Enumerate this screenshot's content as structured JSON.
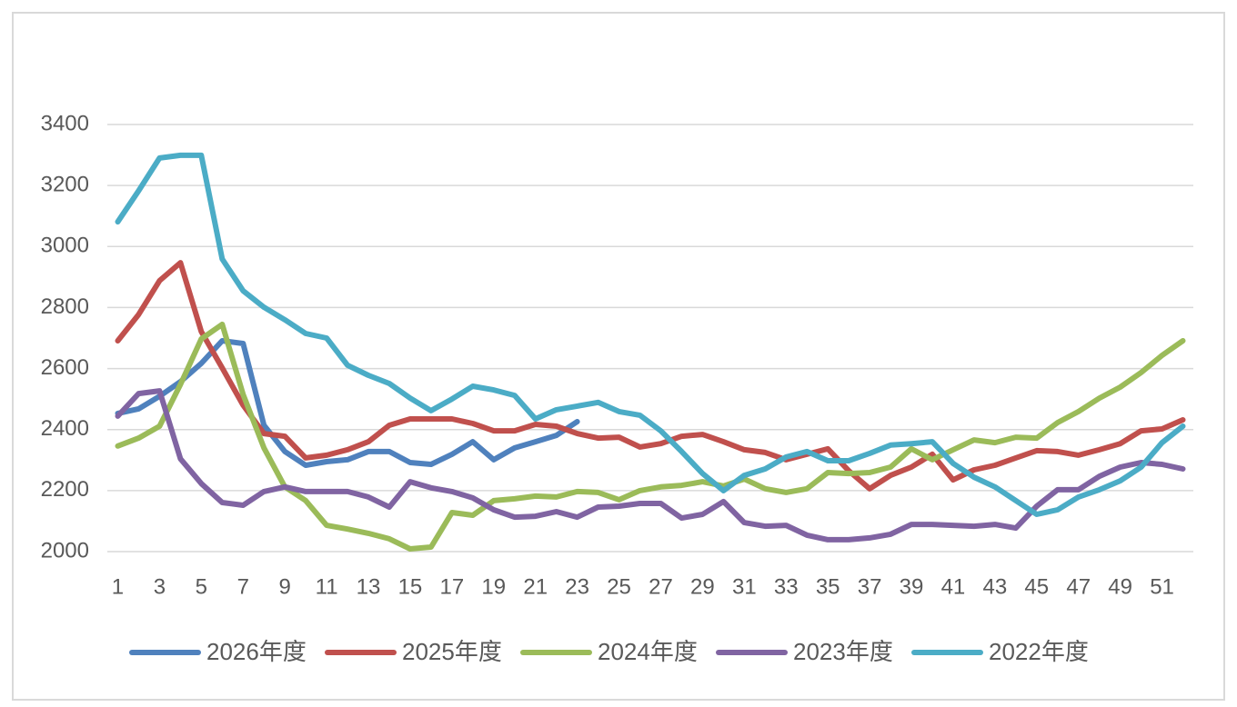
{
  "chart_data": {
    "type": "line",
    "categories": [
      1,
      null,
      3,
      null,
      5,
      null,
      7,
      null,
      9,
      null,
      11,
      null,
      13,
      null,
      15,
      null,
      17,
      null,
      19,
      null,
      21,
      null,
      23,
      null,
      25,
      null,
      27,
      null,
      29,
      null,
      31,
      null,
      33,
      null,
      35,
      null,
      37,
      null,
      39,
      null,
      41,
      null,
      43,
      null,
      45,
      null,
      47,
      null,
      49,
      null,
      51,
      null
    ],
    "ylim": [
      2000,
      3400
    ],
    "yticks": [
      2000,
      2200,
      2400,
      2600,
      2800,
      3000,
      3200,
      3400
    ],
    "grid": true,
    "legend": "bottom",
    "series": [
      {
        "name": "2026年度",
        "color": "#4f81bd",
        "values": [
          2453,
          2468,
          2509,
          2557,
          2617,
          2691,
          2682,
          2414,
          2328,
          2283,
          2295,
          2301,
          2328,
          2328,
          2292,
          2286,
          2319,
          2360,
          2301,
          2340,
          2360,
          2381,
          2426,
          null,
          null,
          null,
          null,
          null,
          null,
          null,
          null,
          null,
          null,
          null,
          null,
          null,
          null,
          null,
          null,
          null,
          null,
          null,
          null,
          null,
          null,
          null,
          null,
          null,
          null,
          null,
          null,
          null
        ]
      },
      {
        "name": "2025年度",
        "color": "#c0504d",
        "values": [
          2691,
          2777,
          2888,
          2947,
          2721,
          2602,
          2480,
          2387,
          2378,
          2307,
          2316,
          2334,
          2360,
          2414,
          2435,
          2435,
          2435,
          2420,
          2396,
          2396,
          2417,
          2411,
          2387,
          2372,
          2375,
          2343,
          2354,
          2378,
          2384,
          2360,
          2334,
          2325,
          2301,
          2319,
          2337,
          2265,
          2206,
          2250,
          2277,
          2319,
          2235,
          2268,
          2283,
          2307,
          2331,
          2328,
          2316,
          2334,
          2354,
          2396,
          2402,
          2432
        ]
      },
      {
        "name": "2024年度",
        "color": "#9bbb59",
        "values": [
          2346,
          2372,
          2411,
          2548,
          2697,
          2745,
          2515,
          2340,
          2212,
          2167,
          2086,
          2074,
          2060,
          2042,
          2009,
          2015,
          2128,
          2119,
          2167,
          2173,
          2182,
          2179,
          2197,
          2194,
          2170,
          2200,
          2212,
          2217,
          2229,
          2215,
          2238,
          2206,
          2194,
          2206,
          2259,
          2256,
          2259,
          2277,
          2337,
          2301,
          2334,
          2366,
          2357,
          2375,
          2372,
          2423,
          2459,
          2503,
          2539,
          2587,
          2643,
          2691
        ]
      },
      {
        "name": "2023年度",
        "color": "#8064a2",
        "values": [
          2444,
          2518,
          2527,
          2304,
          2223,
          2161,
          2152,
          2197,
          2212,
          2197,
          2197,
          2197,
          2179,
          2146,
          2229,
          2209,
          2197,
          2176,
          2137,
          2113,
          2116,
          2131,
          2113,
          2146,
          2149,
          2158,
          2158,
          2110,
          2122,
          2164,
          2095,
          2083,
          2086,
          2054,
          2039,
          2039,
          2045,
          2057,
          2089,
          2089,
          2086,
          2083,
          2089,
          2077,
          2149,
          2203,
          2203,
          2247,
          2277,
          2292,
          2286,
          2271
        ]
      },
      {
        "name": "2022年度",
        "color": "#4bacc6",
        "values": [
          3081,
          3183,
          3290,
          3299,
          3299,
          2959,
          2855,
          2801,
          2760,
          2715,
          2700,
          2611,
          2578,
          2551,
          2503,
          2462,
          2500,
          2542,
          2530,
          2512,
          2435,
          2465,
          2477,
          2489,
          2459,
          2447,
          2396,
          2328,
          2256,
          2200,
          2250,
          2271,
          2310,
          2328,
          2298,
          2298,
          2322,
          2349,
          2354,
          2360,
          2289,
          2244,
          2212,
          2167,
          2122,
          2137,
          2179,
          2203,
          2232,
          2277,
          2357,
          2411
        ]
      }
    ]
  }
}
